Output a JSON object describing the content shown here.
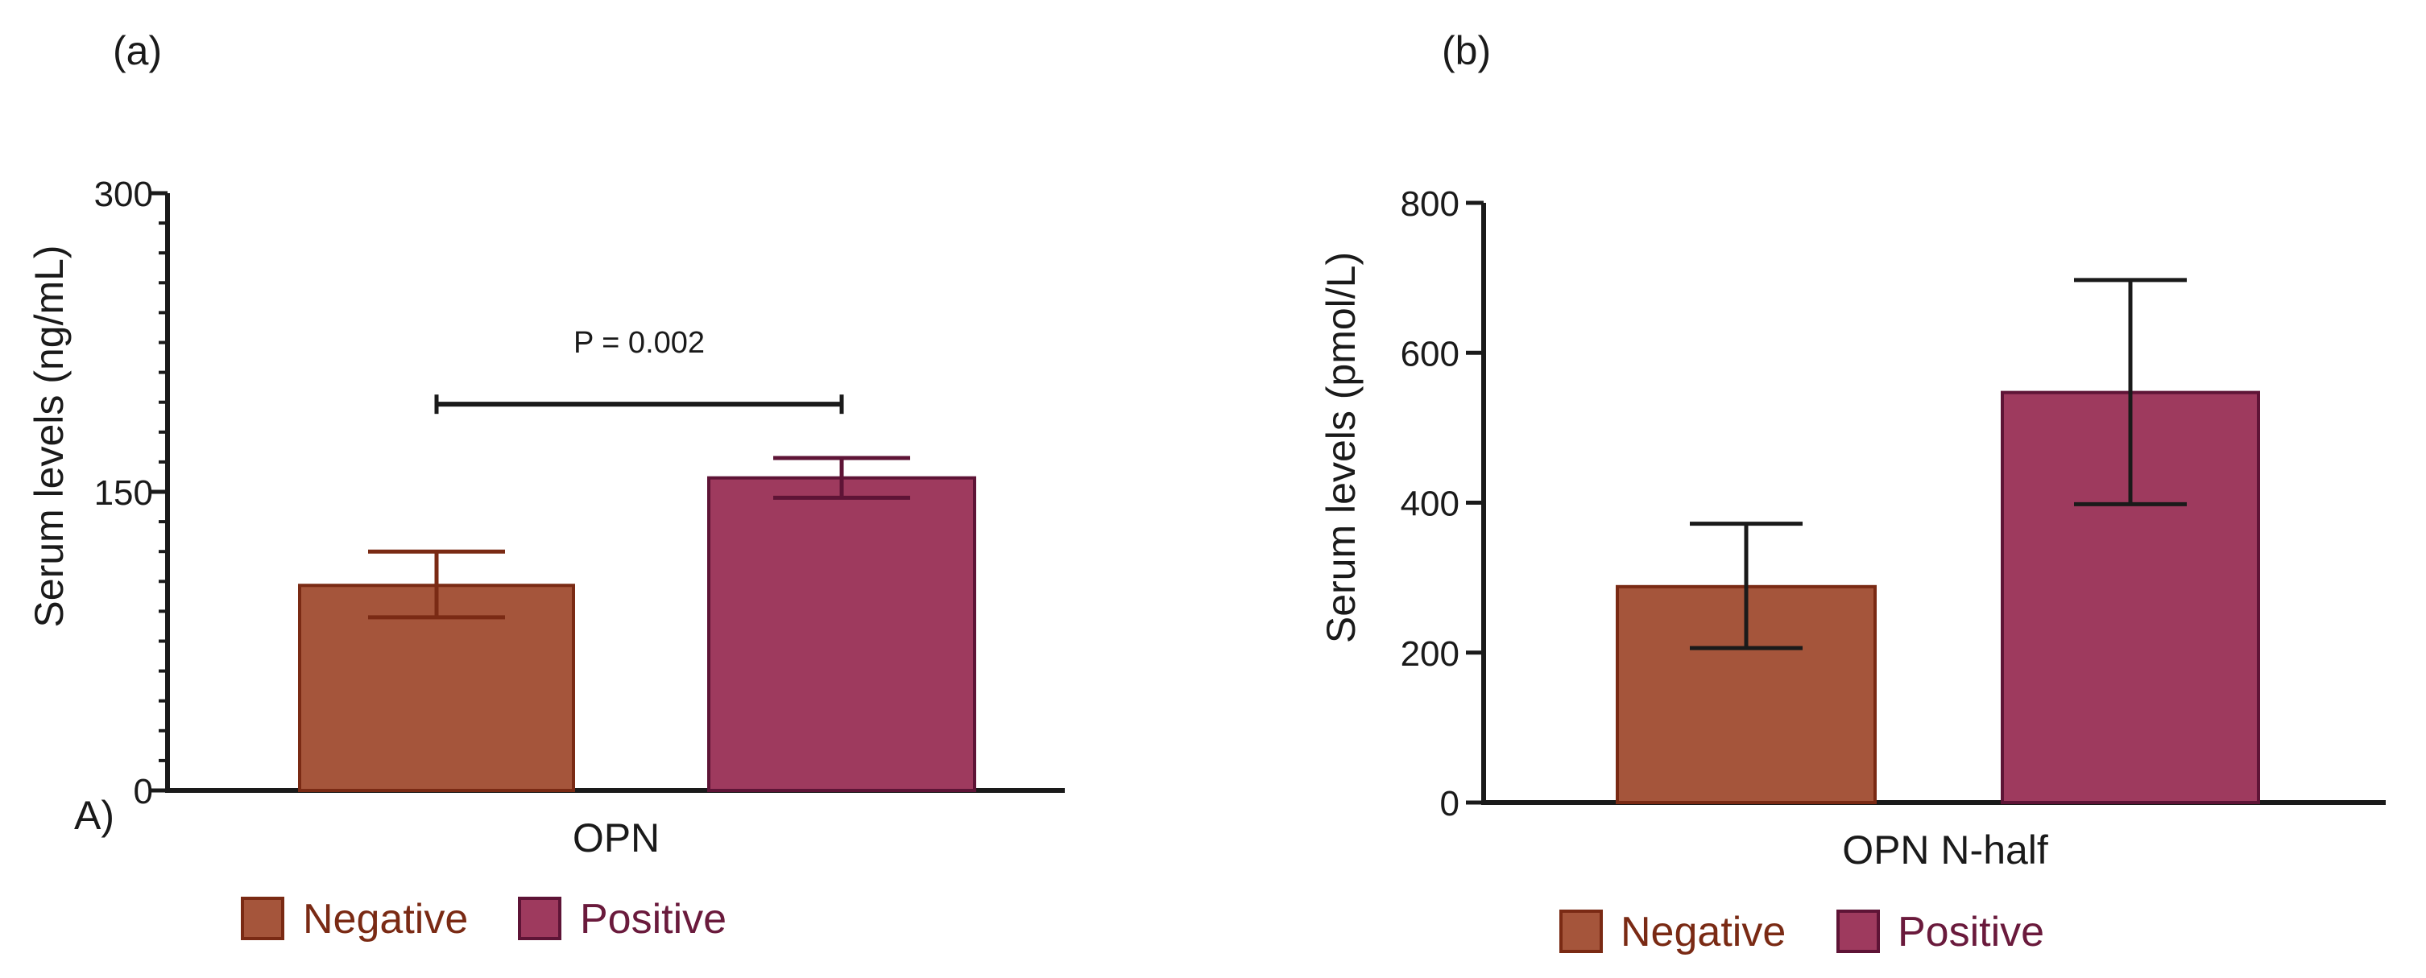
{
  "colors": {
    "negative_fill": "#A5553B",
    "negative_edge": "#7A2A14",
    "negative_text": "#7A2A14",
    "positive_fill": "#9E3A5E",
    "positive_edge": "#5E1436",
    "positive_text": "#6A1A3C",
    "axis": "#1A1A1A",
    "text": "#1A1A1A"
  },
  "chart_data": [
    {
      "panel_label": "(a)",
      "corner_label": "A)",
      "type": "bar",
      "title": "",
      "xlabel": "OPN",
      "ylabel": "Serum levels (ng/mL)",
      "ylim": [
        0,
        300
      ],
      "yticks": [
        0,
        150,
        300
      ],
      "minor_ticks_per_major": 10,
      "grid": false,
      "categories": [
        "OPN"
      ],
      "series": [
        {
          "name": "Negative",
          "key": "negative",
          "values": [
            103
          ],
          "error_low": [
            87
          ],
          "error_high": [
            120
          ]
        },
        {
          "name": "Positive",
          "key": "positive",
          "values": [
            157
          ],
          "error_low": [
            147
          ],
          "error_high": [
            167
          ]
        }
      ],
      "annotation": {
        "text": "P = 0.002",
        "from": "Negative",
        "to": "Positive",
        "bracket_value": 194
      },
      "legend": {
        "placement": "bottom",
        "entries": [
          "Negative",
          "Positive"
        ]
      }
    },
    {
      "panel_label": "(b)",
      "corner_label": "",
      "type": "bar",
      "title": "",
      "xlabel": "OPN N-half",
      "ylabel": "Serum levels (pmol/L)",
      "ylim": [
        0,
        800
      ],
      "yticks": [
        0,
        200,
        400,
        600,
        800
      ],
      "minor_ticks_per_major": 0,
      "grid": false,
      "categories": [
        "OPN N-half"
      ],
      "series": [
        {
          "name": "Negative",
          "key": "negative",
          "values": [
            288
          ],
          "error_low": [
            206
          ],
          "error_high": [
            372
          ]
        },
        {
          "name": "Positive",
          "key": "positive",
          "values": [
            547
          ],
          "error_low": [
            398
          ],
          "error_high": [
            697
          ]
        }
      ],
      "annotation": null,
      "legend": {
        "placement": "bottom",
        "entries": [
          "Negative",
          "Positive"
        ]
      }
    }
  ]
}
